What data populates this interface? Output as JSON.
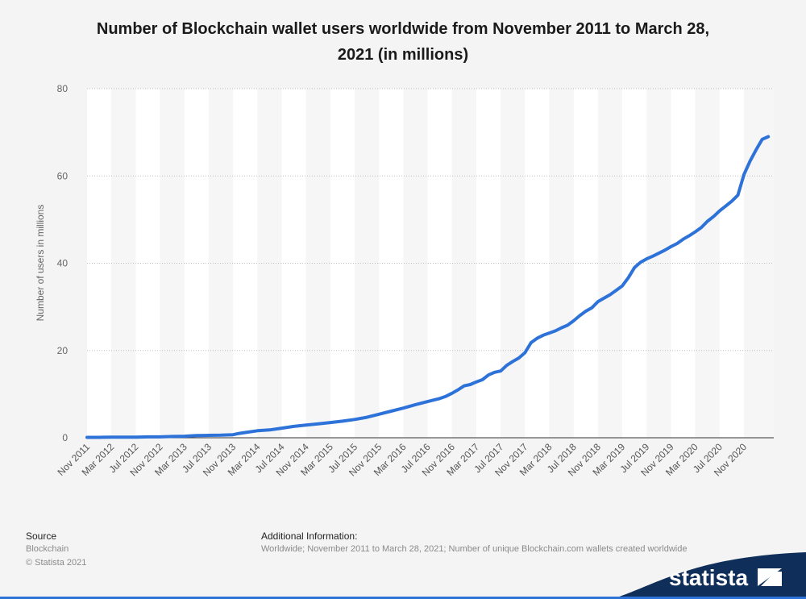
{
  "chart_data": {
    "type": "line",
    "title": "Number of Blockchain wallet users worldwide from November 2011 to March 28, 2021 (in millions)",
    "ylabel": "Number of users in millions",
    "xlabel": "",
    "ylim": [
      0,
      80
    ],
    "yticks": [
      0,
      20,
      40,
      60,
      80
    ],
    "grid": true,
    "x_tick_labels": [
      "Nov 2011",
      "Mar 2012",
      "Jul 2012",
      "Nov 2012",
      "Mar 2013",
      "Jul 2013",
      "Nov 2013",
      "Mar 2014",
      "Jul 2014",
      "Nov 2014",
      "Mar 2015",
      "Jul 2015",
      "Nov 2015",
      "Mar 2016",
      "Jul 2016",
      "Nov 2016",
      "Mar 2017",
      "Jul 2017",
      "Nov 2017",
      "Mar 2018",
      "Jul 2018",
      "Nov 2018",
      "Mar 2019",
      "Jul 2019",
      "Nov 2019",
      "Mar 2020",
      "Jul 2020",
      "Nov 2020"
    ],
    "series": [
      {
        "color": "#2d72d9",
        "x": [
          "Nov 2011",
          "Jan 2012",
          "Mar 2012",
          "May 2012",
          "Jul 2012",
          "Sep 2012",
          "Nov 2012",
          "Jan 2013",
          "Mar 2013",
          "May 2013",
          "Jul 2013",
          "Sep 2013",
          "Nov 2013",
          "Dec 2013",
          "Jan 2014",
          "Mar 2014",
          "May 2014",
          "Jul 2014",
          "Sep 2014",
          "Nov 2014",
          "Jan 2015",
          "Mar 2015",
          "May 2015",
          "Jul 2015",
          "Sep 2015",
          "Nov 2015",
          "Jan 2016",
          "Mar 2016",
          "May 2016",
          "Jul 2016",
          "Sep 2016",
          "Oct 2016",
          "Nov 2016",
          "Dec 2016",
          "Jan 2017",
          "Feb 2017",
          "Mar 2017",
          "Apr 2017",
          "May 2017",
          "Jun 2017",
          "Jul 2017",
          "Aug 2017",
          "Sep 2017",
          "Oct 2017",
          "Nov 2017",
          "Dec 2017",
          "Jan 2018",
          "Feb 2018",
          "Mar 2018",
          "Apr 2018",
          "May 2018",
          "Jun 2018",
          "Jul 2018",
          "Aug 2018",
          "Sep 2018",
          "Oct 2018",
          "Nov 2018",
          "Dec 2018",
          "Jan 2019",
          "Feb 2019",
          "Mar 2019",
          "Apr 2019",
          "May 2019",
          "Jun 2019",
          "Jul 2019",
          "Aug 2019",
          "Sep 2019",
          "Oct 2019",
          "Nov 2019",
          "Dec 2019",
          "Jan 2020",
          "Feb 2020",
          "Mar 2020",
          "Apr 2020",
          "May 2020",
          "Jun 2020",
          "Jul 2020",
          "Aug 2020",
          "Sep 2020",
          "Oct 2020",
          "Nov 2020",
          "Dec 2020",
          "Jan 2021",
          "Feb 2021",
          "Mar 2021"
        ],
        "values": [
          0.1,
          0.1,
          0.15,
          0.15,
          0.15,
          0.2,
          0.2,
          0.3,
          0.35,
          0.5,
          0.55,
          0.6,
          0.7,
          1.0,
          1.2,
          1.6,
          1.8,
          2.2,
          2.6,
          2.9,
          3.2,
          3.5,
          3.8,
          4.2,
          4.7,
          5.4,
          6.1,
          6.8,
          7.6,
          8.3,
          9.0,
          9.5,
          10.2,
          11.0,
          11.9,
          12.2,
          12.8,
          13.3,
          14.4,
          15.0,
          15.3,
          16.6,
          17.5,
          18.3,
          19.5,
          21.8,
          22.8,
          23.5,
          24.0,
          24.5,
          25.2,
          25.8,
          26.8,
          28.0,
          29.0,
          29.8,
          31.2,
          32.0,
          32.8,
          33.8,
          34.8,
          36.7,
          39.0,
          40.2,
          41.0,
          41.6,
          42.3,
          43.0,
          43.8,
          44.5,
          45.5,
          46.3,
          47.2,
          48.2,
          49.6,
          50.7,
          52.0,
          53.1,
          54.2,
          55.6,
          60.3,
          63.4,
          66.0,
          68.4,
          69.0
        ]
      }
    ]
  },
  "footer": {
    "source_label": "Source",
    "source_name": "Blockchain",
    "copyright": "© Statista 2021",
    "additional_label": "Additional Information:",
    "additional_text": "Worldwide; November 2011 to March 28, 2021; Number of unique Blockchain.com wallets created worldwide"
  },
  "brand": {
    "name": "statista",
    "color": "#0f2f5a",
    "accent": "#2d72d9"
  }
}
